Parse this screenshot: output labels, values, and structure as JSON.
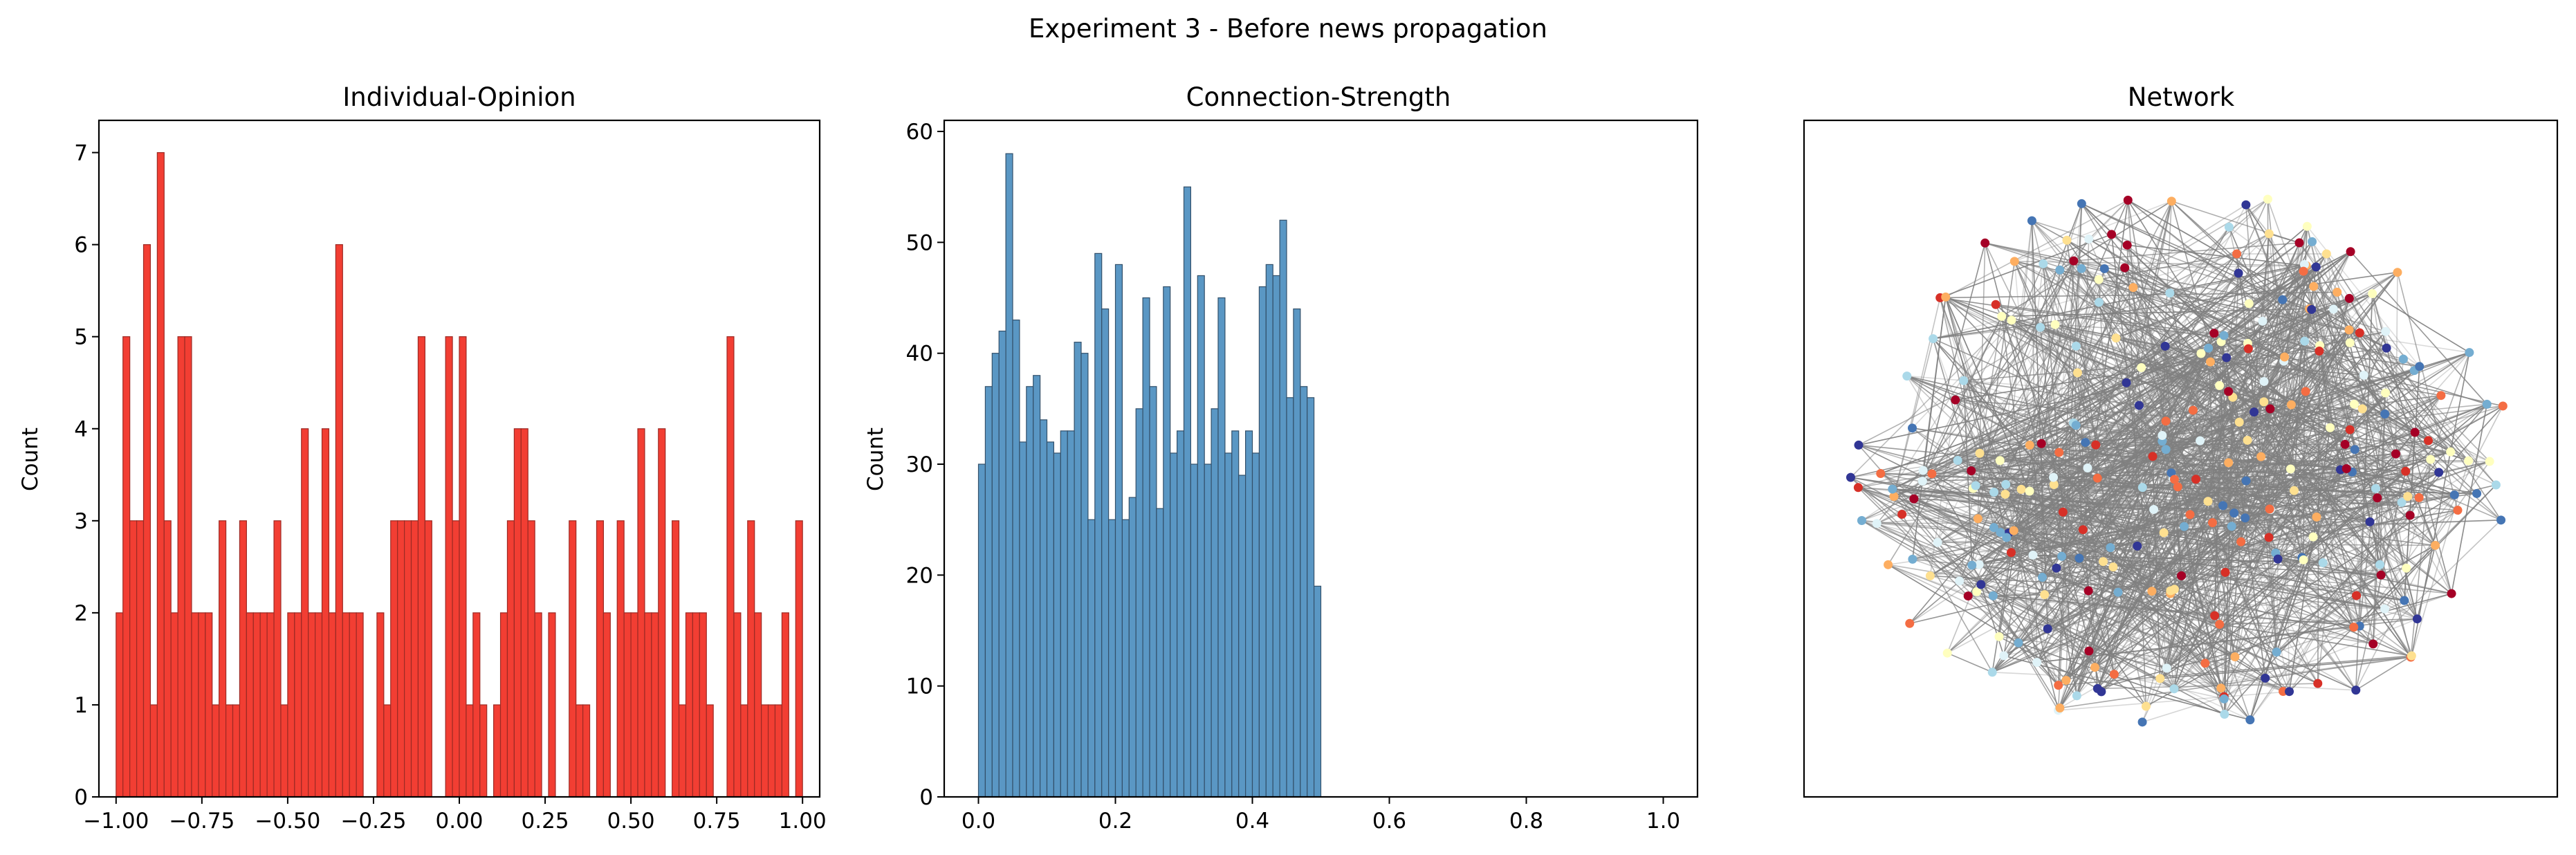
{
  "figure": {
    "suptitle": "Experiment 3 - Before news propagation"
  },
  "chart_data": [
    {
      "type": "bar",
      "title": "Individual-Opinion",
      "xlabel": "",
      "ylabel": "Count",
      "xlim": [
        -1.05,
        1.05
      ],
      "ylim": [
        0,
        7.35
      ],
      "xticks": [
        -1.0,
        -0.75,
        -0.5,
        -0.25,
        0.0,
        0.25,
        0.5,
        0.75,
        1.0
      ],
      "xtick_labels": [
        "−1.00",
        "−0.75",
        "−0.50",
        "−0.25",
        "0.00",
        "0.25",
        "0.50",
        "0.75",
        "1.00"
      ],
      "yticks": [
        0,
        1,
        2,
        3,
        4,
        5,
        6,
        7
      ],
      "bin_start": -1.0,
      "bin_width": 0.02,
      "values": [
        2,
        5,
        3,
        3,
        6,
        1,
        7,
        3,
        2,
        5,
        5,
        2,
        2,
        2,
        1,
        3,
        1,
        1,
        3,
        2,
        2,
        2,
        2,
        3,
        1,
        2,
        2,
        4,
        2,
        2,
        4,
        2,
        6,
        2,
        2,
        2,
        0,
        0,
        2,
        1,
        3,
        3,
        3,
        3,
        5,
        3,
        0,
        0,
        5,
        3,
        5,
        1,
        2,
        1,
        0,
        1,
        2,
        3,
        4,
        4,
        3,
        2,
        0,
        2,
        0,
        0,
        3,
        1,
        1,
        0,
        3,
        2,
        0,
        3,
        2,
        2,
        4,
        2,
        2,
        4,
        0,
        3,
        1,
        2,
        2,
        2,
        1,
        0,
        0,
        5,
        2,
        1,
        3,
        2,
        1,
        1,
        1,
        2,
        0,
        3
      ],
      "bar_color": "#f23e33",
      "edge_color": "#9c2a24"
    },
    {
      "type": "bar",
      "title": "Connection-Strength",
      "xlabel": "",
      "ylabel": "Count",
      "xlim": [
        -0.05,
        1.05
      ],
      "ylim": [
        0,
        61
      ],
      "xticks": [
        0.0,
        0.2,
        0.4,
        0.6,
        0.8,
        1.0
      ],
      "xtick_labels": [
        "0.0",
        "0.2",
        "0.4",
        "0.6",
        "0.8",
        "1.0"
      ],
      "yticks": [
        0,
        10,
        20,
        30,
        40,
        50,
        60
      ],
      "bin_start": 0.0,
      "bin_width": 0.01,
      "values": [
        30,
        37,
        40,
        42,
        58,
        43,
        32,
        37,
        38,
        34,
        32,
        31,
        33,
        33,
        41,
        40,
        25,
        49,
        44,
        25,
        48,
        25,
        27,
        35,
        45,
        37,
        26,
        46,
        31,
        33,
        55,
        30,
        47,
        30,
        35,
        45,
        31,
        33,
        29,
        33,
        31,
        46,
        48,
        47,
        52,
        36,
        44,
        37,
        36,
        19
      ],
      "bar_color": "#5a97c4",
      "edge_color": "#33506a"
    },
    {
      "type": "network",
      "title": "Network",
      "node_palette": [
        "#a50026",
        "#d73027",
        "#f46d43",
        "#fdae61",
        "#fee090",
        "#ffffbf",
        "#e0f3f8",
        "#abd9e9",
        "#74add1",
        "#4575b4",
        "#313695"
      ],
      "node_count": 300,
      "edge_color": "#808080"
    }
  ]
}
